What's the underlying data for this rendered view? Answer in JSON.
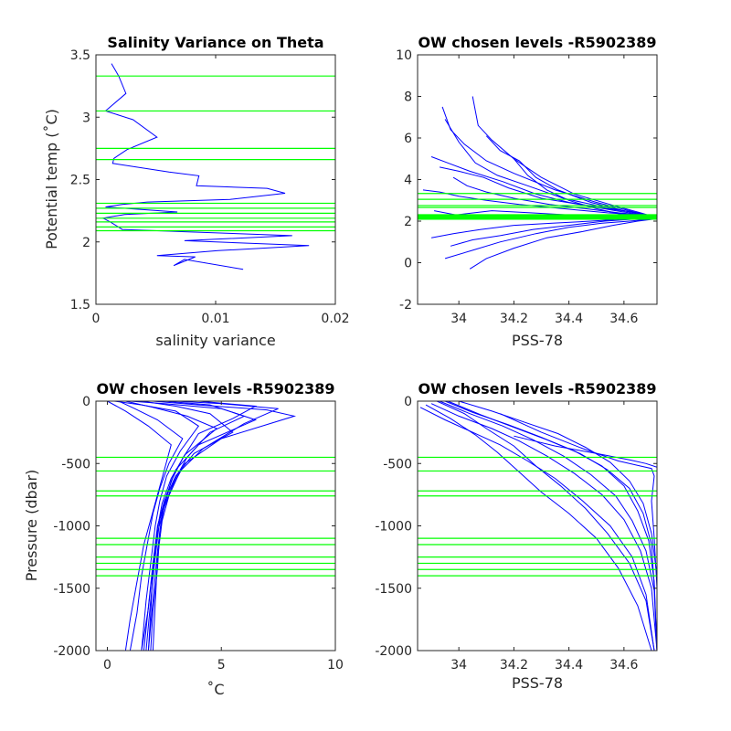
{
  "figure_title": "",
  "colors": {
    "data": "#0000ff",
    "level": "#00ff00",
    "axis": "#262626",
    "text": "#000000"
  },
  "chart_data": [
    {
      "type": "line",
      "title": "Salinity Variance on Theta",
      "xlabel": "salinity variance",
      "ylabel": "Potential temp (˚C)",
      "xlim": [
        0,
        0.02
      ],
      "ylim": [
        1.5,
        3.5
      ],
      "xticks": [
        0,
        0.01,
        0.02
      ],
      "xtick_labels": [
        "0",
        "0.01",
        "0.02"
      ],
      "yticks": [
        1.5,
        2,
        2.5,
        3,
        3.5
      ],
      "ytick_labels": [
        "1.5",
        "2",
        "2.5",
        "3",
        "3.5"
      ],
      "grid": false,
      "levels_axis": "y",
      "chosen_levels": [
        3.33,
        3.05,
        2.75,
        2.66,
        2.31,
        2.27,
        2.23,
        2.19,
        2.16,
        2.12,
        2.09
      ],
      "series": [
        {
          "x": [
            0.0013,
            0.0019,
            0.0025,
            0.0008,
            0.0031,
            0.0051,
            0.0026,
            0.0015,
            0.0014,
            0.0061,
            0.0086,
            0.0084,
            0.0143,
            0.0158,
            0.0112,
            0.0043,
            0.0022,
            0.0008,
            0.0023,
            0.0068,
            0.0024,
            0.0006,
            0.0012,
            0.0022,
            0.0164,
            0.0074,
            0.0178,
            0.0102,
            0.0051,
            0.0083,
            0.0065,
            0.0074,
            0.0123
          ],
          "y": [
            3.43,
            3.33,
            3.19,
            3.05,
            2.98,
            2.84,
            2.74,
            2.67,
            2.63,
            2.56,
            2.53,
            2.45,
            2.43,
            2.39,
            2.34,
            2.32,
            2.3,
            2.28,
            2.27,
            2.24,
            2.22,
            2.19,
            2.16,
            2.1,
            2.05,
            2.01,
            1.97,
            1.93,
            1.89,
            1.88,
            1.81,
            1.86,
            1.78
          ]
        }
      ]
    },
    {
      "type": "line",
      "title": "OW chosen levels -R5902389",
      "xlabel": "PSS-78",
      "ylabel": "",
      "xlim": [
        33.85,
        34.72
      ],
      "ylim": [
        -2,
        10
      ],
      "xticks": [
        34,
        34.2,
        34.4,
        34.6
      ],
      "xtick_labels": [
        "34",
        "34.2",
        "34.4",
        "34.6"
      ],
      "yticks": [
        -2,
        0,
        2,
        4,
        6,
        8,
        10
      ],
      "ytick_labels": [
        "-2",
        "0",
        "2",
        "4",
        "6",
        "8",
        "10"
      ],
      "grid": false,
      "levels_axis": "y",
      "chosen_levels": [
        3.33,
        3.05,
        2.75,
        2.66,
        2.31,
        2.27,
        2.23,
        2.19,
        2.16,
        2.12,
        2.09
      ],
      "series": [
        {
          "x": [
            33.94,
            33.97,
            34.02,
            34.1,
            34.2,
            34.35,
            34.5,
            34.62,
            34.7
          ],
          "y": [
            7.5,
            6.4,
            5.7,
            4.9,
            4.3,
            3.5,
            2.9,
            2.5,
            2.2
          ]
        },
        {
          "x": [
            33.95,
            34.0,
            34.06,
            34.14,
            34.25,
            34.38,
            34.52,
            34.64,
            34.71
          ],
          "y": [
            6.9,
            5.8,
            4.8,
            4.2,
            3.7,
            3.1,
            2.7,
            2.4,
            2.2
          ]
        },
        {
          "x": [
            34.05,
            34.07,
            34.12,
            34.2,
            34.3,
            34.42,
            34.55,
            34.66,
            34.71
          ],
          "y": [
            8.0,
            6.6,
            5.9,
            5.0,
            4.1,
            3.3,
            2.8,
            2.4,
            2.2
          ]
        },
        {
          "x": [
            33.9,
            33.96,
            34.04,
            34.16,
            34.28,
            34.4,
            34.54,
            34.65,
            34.71
          ],
          "y": [
            5.1,
            4.8,
            4.4,
            3.9,
            3.3,
            2.9,
            2.6,
            2.4,
            2.2
          ]
        },
        {
          "x": [
            33.93,
            34.0,
            34.09,
            34.18,
            34.3,
            34.44,
            34.57,
            34.67,
            34.72
          ],
          "y": [
            4.6,
            4.4,
            4.1,
            3.6,
            3.1,
            2.8,
            2.5,
            2.3,
            2.1
          ]
        },
        {
          "x": [
            33.98,
            34.03,
            34.1,
            34.2,
            34.33,
            34.46,
            34.58,
            34.67,
            34.72
          ],
          "y": [
            4.1,
            3.7,
            3.4,
            3.1,
            2.8,
            2.6,
            2.4,
            2.3,
            2.1
          ]
        },
        {
          "x": [
            34.1,
            34.15,
            34.22,
            34.28,
            34.36,
            34.48,
            34.6,
            34.68,
            34.72
          ],
          "y": [
            6.1,
            5.4,
            4.9,
            4.1,
            3.5,
            2.9,
            2.5,
            2.3,
            2.1
          ]
        },
        {
          "x": [
            33.87,
            33.93,
            34.0,
            34.1,
            34.22,
            34.38,
            34.54,
            34.66,
            34.72
          ],
          "y": [
            3.5,
            3.4,
            3.2,
            3.0,
            2.8,
            2.6,
            2.4,
            2.3,
            2.1
          ]
        },
        {
          "x": [
            33.95,
            34.05,
            34.15,
            34.28,
            34.4,
            34.52,
            34.62,
            34.7
          ],
          "y": [
            0.2,
            0.6,
            1.0,
            1.4,
            1.7,
            1.9,
            2.0,
            2.1
          ]
        },
        {
          "x": [
            34.04,
            34.1,
            34.2,
            34.32,
            34.45,
            34.56,
            34.65,
            34.71
          ],
          "y": [
            -0.3,
            0.2,
            0.7,
            1.2,
            1.5,
            1.8,
            2.0,
            2.1
          ]
        },
        {
          "x": [
            33.9,
            33.98,
            34.08,
            34.2,
            34.34,
            34.48,
            34.6,
            34.7
          ],
          "y": [
            1.2,
            1.4,
            1.6,
            1.8,
            1.9,
            2.0,
            2.1,
            2.2
          ]
        },
        {
          "x": [
            34.2,
            34.25,
            34.32,
            34.4,
            34.5,
            34.6,
            34.68,
            34.72
          ],
          "y": [
            5.0,
            4.2,
            3.5,
            3.0,
            2.6,
            2.3,
            2.2,
            2.1
          ]
        },
        {
          "x": [
            33.97,
            34.05,
            34.15,
            34.27,
            34.4,
            34.53,
            34.64,
            34.71
          ],
          "y": [
            0.8,
            1.1,
            1.3,
            1.6,
            1.8,
            2.0,
            2.1,
            2.2
          ]
        },
        {
          "x": [
            33.91,
            33.99,
            34.12,
            34.26,
            34.4,
            34.54,
            34.65,
            34.72
          ],
          "y": [
            2.5,
            2.3,
            2.5,
            2.4,
            2.3,
            2.2,
            2.2,
            2.1
          ]
        }
      ]
    },
    {
      "type": "line",
      "title": "OW chosen levels -R5902389",
      "xlabel": "˚C",
      "ylabel": "Pressure (dbar)",
      "xlim": [
        -0.5,
        10
      ],
      "ylim": [
        -2000,
        0
      ],
      "xticks": [
        0,
        5,
        10
      ],
      "xtick_labels": [
        "0",
        "5",
        "10"
      ],
      "yticks": [
        -2000,
        -1500,
        -1000,
        -500,
        0
      ],
      "ytick_labels": [
        "-2000",
        "-1500",
        "-1000",
        "-500",
        "0"
      ],
      "grid": false,
      "levels_axis": "y",
      "chosen_levels": [
        -450,
        -560,
        -720,
        -760,
        -1100,
        -1150,
        -1250,
        -1300,
        -1350,
        -1400
      ],
      "series": [
        {
          "x": [
            0.3,
            1.5,
            3.0,
            4.0,
            3.2,
            2.6,
            2.3,
            2.1,
            1.9,
            1.7,
            1.5
          ],
          "y": [
            0,
            -30,
            -80,
            -200,
            -400,
            -600,
            -800,
            -1000,
            -1300,
            -1600,
            -2000
          ]
        },
        {
          "x": [
            1.0,
            2.5,
            5.0,
            6.5,
            4.0,
            3.0,
            2.6,
            2.3,
            2.1,
            1.9,
            1.7
          ],
          "y": [
            0,
            -20,
            -60,
            -150,
            -350,
            -550,
            -750,
            -950,
            -1250,
            -1600,
            -2000
          ]
        },
        {
          "x": [
            2.0,
            4.0,
            7.0,
            8.2,
            5.0,
            3.4,
            2.8,
            2.4,
            2.2,
            2.0,
            1.8
          ],
          "y": [
            0,
            -30,
            -70,
            -120,
            -300,
            -500,
            -700,
            -900,
            -1200,
            -1600,
            -2000
          ]
        },
        {
          "x": [
            0.5,
            1.2,
            2.2,
            3.3,
            2.7,
            2.3,
            2.0,
            1.8,
            1.5,
            1.3,
            1.0
          ],
          "y": [
            0,
            -60,
            -150,
            -300,
            -500,
            -700,
            -900,
            -1100,
            -1400,
            -1700,
            -2000
          ]
        },
        {
          "x": [
            1.5,
            3.0,
            4.5,
            5.5,
            3.8,
            3.0,
            2.5,
            2.2,
            2.0,
            1.8,
            1.6
          ],
          "y": [
            0,
            -40,
            -100,
            -250,
            -420,
            -600,
            -800,
            -1000,
            -1300,
            -1650,
            -2000
          ]
        },
        {
          "x": [
            3.0,
            5.0,
            7.5,
            6.0,
            4.2,
            3.2,
            2.7,
            2.4,
            2.2,
            2.1,
            2.0
          ],
          "y": [
            0,
            -20,
            -60,
            -180,
            -380,
            -560,
            -760,
            -960,
            -1260,
            -1620,
            -2000
          ]
        },
        {
          "x": [
            0.0,
            0.8,
            1.8,
            2.8,
            2.5,
            2.2,
            1.9,
            1.6,
            1.3,
            1.0,
            0.8
          ],
          "y": [
            0,
            -80,
            -200,
            -350,
            -550,
            -750,
            -950,
            -1150,
            -1450,
            -1750,
            -2000
          ]
        },
        {
          "x": [
            2.5,
            4.5,
            6.0,
            4.5,
            3.5,
            2.9,
            2.5,
            2.2,
            2.0,
            1.9,
            1.8
          ],
          "y": [
            0,
            -30,
            -120,
            -250,
            -450,
            -650,
            -850,
            -1050,
            -1350,
            -1700,
            -2000
          ]
        },
        {
          "x": [
            0.8,
            2.0,
            3.5,
            4.8,
            3.4,
            2.8,
            2.4,
            2.2,
            2.0,
            1.8,
            1.5
          ],
          "y": [
            0,
            -50,
            -120,
            -220,
            -430,
            -620,
            -820,
            -1020,
            -1320,
            -1660,
            -2000
          ]
        },
        {
          "x": [
            4.0,
            6.5,
            5.5,
            4.0,
            3.3,
            2.8,
            2.5,
            2.3,
            2.2,
            2.0,
            1.9
          ],
          "y": [
            0,
            -40,
            -140,
            -260,
            -460,
            -640,
            -840,
            -1040,
            -1340,
            -1680,
            -2000
          ]
        }
      ]
    },
    {
      "type": "line",
      "title": "OW chosen levels -R5902389",
      "xlabel": "PSS-78",
      "ylabel": "",
      "xlim": [
        33.85,
        34.72
      ],
      "ylim": [
        -2000,
        0
      ],
      "xticks": [
        34,
        34.2,
        34.4,
        34.6
      ],
      "xtick_labels": [
        "34",
        "34.2",
        "34.4",
        "34.6"
      ],
      "yticks": [
        -2000,
        -1500,
        -1000,
        -500,
        0
      ],
      "ytick_labels": [
        "-2000",
        "-1500",
        "-1000",
        "-500",
        "0"
      ],
      "grid": false,
      "levels_axis": "y",
      "chosen_levels": [
        -450,
        -560,
        -720,
        -760,
        -1100,
        -1150,
        -1250,
        -1300,
        -1350,
        -1400
      ],
      "series": [
        {
          "x": [
            33.86,
            33.95,
            34.05,
            34.15,
            34.25,
            34.35,
            34.45,
            34.55,
            34.63,
            34.68,
            34.71
          ],
          "y": [
            -50,
            -150,
            -250,
            -350,
            -480,
            -620,
            -800,
            -1000,
            -1250,
            -1550,
            -2000
          ]
        },
        {
          "x": [
            33.9,
            34.0,
            34.12,
            34.22,
            34.32,
            34.42,
            34.52,
            34.6,
            34.66,
            34.7,
            34.72
          ],
          "y": [
            -20,
            -120,
            -220,
            -320,
            -440,
            -580,
            -750,
            -950,
            -1200,
            -1500,
            -2000
          ]
        },
        {
          "x": [
            33.95,
            34.05,
            34.18,
            34.3,
            34.42,
            34.52,
            34.6,
            34.65,
            34.69,
            34.71,
            34.72
          ],
          "y": [
            0,
            -90,
            -190,
            -290,
            -400,
            -520,
            -680,
            -880,
            -1120,
            -1450,
            -2000
          ]
        },
        {
          "x": [
            33.92,
            34.02,
            34.1,
            34.2,
            34.28,
            34.37,
            34.46,
            34.54,
            34.62,
            34.68,
            34.71
          ],
          "y": [
            0,
            -100,
            -220,
            -360,
            -520,
            -680,
            -860,
            -1060,
            -1300,
            -1600,
            -2000
          ]
        },
        {
          "x": [
            34.0,
            34.12,
            34.24,
            34.36,
            34.46,
            34.55,
            34.62,
            34.67,
            34.7,
            34.72,
            34.72
          ],
          "y": [
            0,
            -80,
            -170,
            -260,
            -370,
            -490,
            -640,
            -820,
            -1060,
            -1400,
            -2000
          ]
        },
        {
          "x": [
            33.88,
            33.97,
            34.06,
            34.14,
            34.22,
            34.3,
            34.4,
            34.5,
            34.58,
            34.65,
            34.7
          ],
          "y": [
            -30,
            -140,
            -270,
            -410,
            -570,
            -730,
            -900,
            -1100,
            -1340,
            -1640,
            -2000
          ]
        },
        {
          "x": [
            33.96,
            34.08,
            34.2,
            34.32,
            34.44,
            34.54,
            34.62,
            34.67,
            34.7,
            34.71,
            34.72
          ],
          "y": [
            0,
            -110,
            -210,
            -310,
            -420,
            -550,
            -700,
            -900,
            -1150,
            -1480,
            -2000
          ]
        },
        {
          "x": [
            34.15,
            34.3,
            34.45,
            34.58,
            34.66,
            34.7,
            34.71,
            34.7,
            34.71,
            34.72,
            34.72
          ],
          "y": [
            -100,
            -250,
            -380,
            -480,
            -520,
            -540,
            -600,
            -800,
            -1100,
            -1500,
            -2000
          ]
        },
        {
          "x": [
            33.93,
            34.04,
            34.16,
            34.27,
            34.38,
            34.48,
            34.57,
            34.63,
            34.68,
            34.71,
            34.72
          ],
          "y": [
            0,
            -100,
            -200,
            -310,
            -440,
            -590,
            -760,
            -960,
            -1200,
            -1520,
            -2000
          ]
        },
        {
          "x": [
            34.2,
            34.35,
            34.5,
            34.62,
            34.68,
            34.72,
            34.72
          ],
          "y": [
            -280,
            -360,
            -420,
            -470,
            -500,
            -530,
            -560
          ]
        }
      ]
    }
  ]
}
